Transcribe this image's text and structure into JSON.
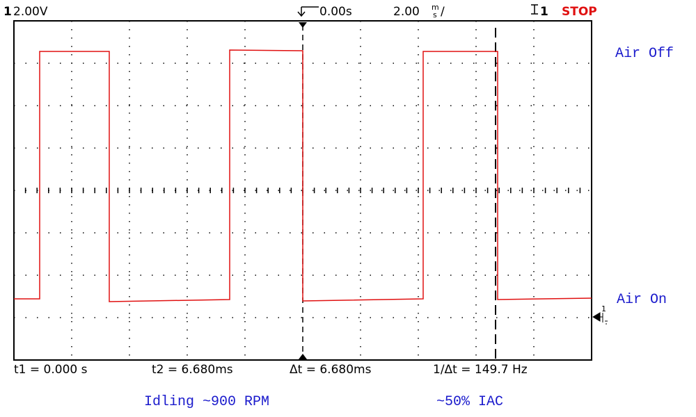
{
  "header": {
    "channel": "1",
    "scale": "2.00V",
    "delay": "0.00s",
    "timebase": "2.00",
    "timebase_unit_top": "m",
    "timebase_unit_bottom": "s",
    "timebase_slash": "/",
    "trigger_channel": "1",
    "status": "STOP"
  },
  "labels": {
    "high": "Air Off",
    "low": "Air On",
    "ground_marker": "1"
  },
  "measurements": [
    "t1 = 0.000 s",
    "t2 = 6.680ms",
    "Δt = 6.680ms",
    "1/Δt = 149.7 Hz"
  ],
  "captions": [
    "Idling ~900 RPM",
    "~50% IAC"
  ]
}
